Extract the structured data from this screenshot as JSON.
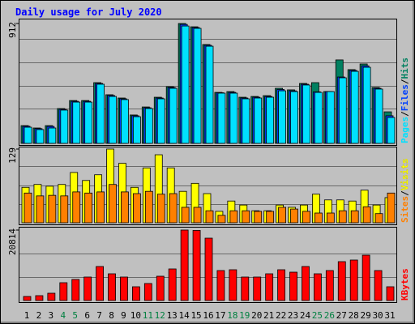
{
  "title": "Daily usage for July 2020",
  "chart_data": [
    {
      "type": "bar",
      "ylim": [
        0,
        912
      ],
      "yticks": [
        912
      ],
      "legend_separator": "/",
      "series": [
        {
          "name": "Pages",
          "color": "#00e0ff",
          "values": [
            123,
            105,
            117,
            253,
            314,
            314,
            450,
            357,
            333,
            203,
            265,
            339,
            419,
            893,
            875,
            739,
            382,
            382,
            339,
            345,
            351,
            400,
            394,
            444,
            388,
            394,
            499,
            548,
            579,
            413,
            197
          ]
        },
        {
          "name": "Files",
          "color": "#0040ff",
          "values": [
            130,
            112,
            129,
            259,
            320,
            320,
            456,
            364,
            339,
            210,
            271,
            345,
            425,
            905,
            881,
            746,
            385,
            388,
            345,
            351,
            357,
            410,
            400,
            450,
            392,
            394,
            505,
            555,
            590,
            419,
            210
          ]
        },
        {
          "name": "Hits",
          "color": "#008060",
          "values": [
            135,
            117,
            135,
            265,
            326,
            326,
            462,
            370,
            345,
            216,
            277,
            351,
            431,
            912,
            887,
            752,
            388,
            394,
            351,
            357,
            363,
            419,
            407,
            456,
            462,
            394,
            635,
            561,
            604,
            425,
            240
          ]
        }
      ]
    },
    {
      "type": "bar",
      "ylim": [
        0,
        129
      ],
      "yticks": [
        129
      ],
      "legend_separator": "/",
      "series": [
        {
          "name": "Sites",
          "color": "#ff8000",
          "values": [
            52,
            47,
            48,
            47,
            54,
            52,
            54,
            67,
            54,
            51,
            55,
            50,
            51,
            27,
            27,
            21,
            13,
            21,
            21,
            20,
            20,
            27,
            24,
            20,
            17,
            17,
            21,
            21,
            28,
            16,
            52
          ]
        },
        {
          "name": "Visits",
          "color": "#ffff00",
          "values": [
            62,
            67,
            64,
            67,
            88,
            74,
            84,
            129,
            104,
            62,
            96,
            119,
            96,
            55,
            69,
            51,
            20,
            38,
            31,
            21,
            21,
            31,
            27,
            31,
            50,
            40,
            40,
            38,
            57,
            31,
            44
          ]
        }
      ]
    },
    {
      "type": "bar",
      "ylim": [
        0,
        20814
      ],
      "yticks": [
        20814
      ],
      "series": [
        {
          "name": "KBytes",
          "color": "#ff0000",
          "values": [
            1196,
            1435,
            2153,
            5262,
            6219,
            6937,
            10046,
            7894,
            6937,
            4066,
            5023,
            7176,
            9329,
            20814,
            20700,
            18418,
            8850,
            9090,
            6937,
            6937,
            7894,
            9090,
            8372,
            10046,
            7894,
            8850,
            11482,
            11960,
            13395,
            8850,
            4066
          ]
        }
      ],
      "categories": [
        "1",
        "2",
        "3",
        "4",
        "5",
        "6",
        "7",
        "8",
        "9",
        "10",
        "11",
        "12",
        "13",
        "14",
        "15",
        "16",
        "17",
        "18",
        "19",
        "20",
        "21",
        "22",
        "23",
        "24",
        "25",
        "26",
        "27",
        "28",
        "29",
        "30",
        "31"
      ],
      "category_colors": [
        "#000",
        "#000",
        "#000",
        "#008040",
        "#008040",
        "#000",
        "#000",
        "#000",
        "#000",
        "#000",
        "#008040",
        "#008040",
        "#000",
        "#000",
        "#000",
        "#000",
        "#000",
        "#008040",
        "#008040",
        "#000",
        "#000",
        "#000",
        "#000",
        "#000",
        "#008040",
        "#008040",
        "#000",
        "#000",
        "#000",
        "#000",
        "#000"
      ]
    }
  ]
}
